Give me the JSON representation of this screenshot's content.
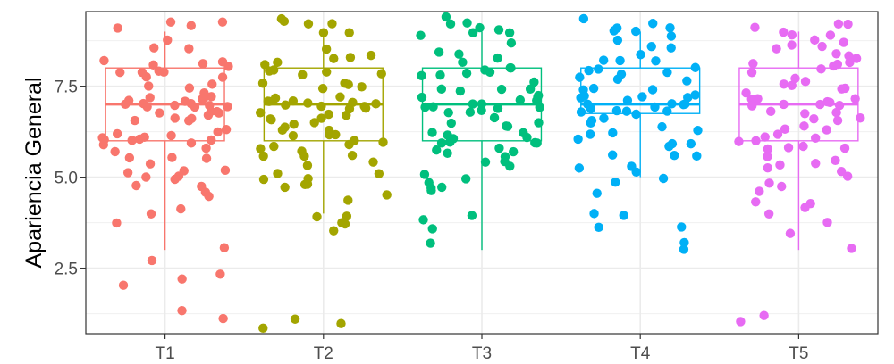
{
  "chart_data": {
    "type": "box+jitter",
    "title": "",
    "xlabel": "",
    "ylabel": "Apariencia General",
    "ylim": [
      0.7,
      9.55
    ],
    "yticks": [
      2.5,
      5.0,
      7.5
    ],
    "ytick_labels": [
      "2.5",
      "5.0",
      "7.5"
    ],
    "grid": true,
    "legend": "none",
    "categories": [
      "T1",
      "T2",
      "T3",
      "T4",
      "T5"
    ],
    "colors": [
      "#F8766D",
      "#A3A500",
      "#00BF7D",
      "#00B0F6",
      "#E76BF3"
    ],
    "boxes": [
      {
        "category": "T1",
        "whisker_low": 3.0,
        "q1": 6.0,
        "median": 7.0,
        "q3": 8.0,
        "whisker_high": 9.0
      },
      {
        "category": "T2",
        "whisker_low": 4.0,
        "q1": 6.0,
        "median": 7.0,
        "q3": 8.0,
        "whisker_high": 9.0
      },
      {
        "category": "T3",
        "whisker_low": 3.0,
        "q1": 6.0,
        "median": 7.0,
        "q3": 8.0,
        "whisker_high": 9.0
      },
      {
        "category": "T4",
        "whisker_low": 5.0,
        "q1": 6.75,
        "median": 7.0,
        "q3": 8.0,
        "whisker_high": 9.0
      },
      {
        "category": "T5",
        "whisker_low": 3.0,
        "q1": 6.0,
        "median": 7.0,
        "q3": 8.0,
        "whisker_high": 9.0
      }
    ],
    "points": [
      {
        "category": "T1",
        "values": [
          9.3,
          9.2,
          9.0,
          9.1,
          8.7,
          8.6,
          8.6,
          8.2,
          8.2,
          8.1,
          8.1,
          8.0,
          8.0,
          7.9,
          7.9,
          7.8,
          7.8,
          7.7,
          7.6,
          7.5,
          7.5,
          7.4,
          7.3,
          7.2,
          7.2,
          7.1,
          7.1,
          7.0,
          7.0,
          7.0,
          7.0,
          7.0,
          7.0,
          6.9,
          6.9,
          6.9,
          6.8,
          6.8,
          6.8,
          6.7,
          6.7,
          6.6,
          6.6,
          6.5,
          6.5,
          6.4,
          6.3,
          6.3,
          6.2,
          6.2,
          6.1,
          6.1,
          6.0,
          6.0,
          6.0,
          5.9,
          5.9,
          5.8,
          5.7,
          5.6,
          5.6,
          5.5,
          5.4,
          5.3,
          5.2,
          5.1,
          5.0,
          4.9,
          4.9,
          4.8,
          4.8,
          4.7,
          4.5,
          4.1,
          4.0,
          3.8,
          3.0,
          2.7,
          2.4,
          2.3,
          2.0,
          1.3,
          1.0
        ]
      },
      {
        "category": "T2",
        "values": [
          9.3,
          9.3,
          9.3,
          9.2,
          9.0,
          8.9,
          8.4,
          8.3,
          8.3,
          8.2,
          8.2,
          8.1,
          8.0,
          8.0,
          7.9,
          7.8,
          7.8,
          7.7,
          7.6,
          7.5,
          7.5,
          7.4,
          7.3,
          7.2,
          7.2,
          7.1,
          7.1,
          7.0,
          7.0,
          7.0,
          7.0,
          7.0,
          7.0,
          6.9,
          6.9,
          6.8,
          6.8,
          6.7,
          6.7,
          6.6,
          6.5,
          6.5,
          6.4,
          6.3,
          6.3,
          6.2,
          6.2,
          6.1,
          6.1,
          6.0,
          6.0,
          5.9,
          5.8,
          5.8,
          5.7,
          5.7,
          5.6,
          5.5,
          5.4,
          5.3,
          5.2,
          5.1,
          5.0,
          4.9,
          4.8,
          4.7,
          4.7,
          4.4,
          4.3,
          4.0,
          4.0,
          3.8,
          3.7,
          3.6,
          1.0,
          1.0,
          0.9
        ]
      },
      {
        "category": "T3",
        "values": [
          9.3,
          9.2,
          9.1,
          9.0,
          9.0,
          9.0,
          9.0,
          8.8,
          8.6,
          8.5,
          8.3,
          8.2,
          8.2,
          8.1,
          8.0,
          8.0,
          8.0,
          7.9,
          7.8,
          7.7,
          7.6,
          7.5,
          7.5,
          7.4,
          7.3,
          7.3,
          7.2,
          7.1,
          7.1,
          7.0,
          7.0,
          7.0,
          7.0,
          7.0,
          6.9,
          6.9,
          6.8,
          6.8,
          6.7,
          6.6,
          6.6,
          6.5,
          6.4,
          6.3,
          6.3,
          6.2,
          6.1,
          6.1,
          6.0,
          6.0,
          6.0,
          5.9,
          5.9,
          5.8,
          5.8,
          5.7,
          5.6,
          5.5,
          5.4,
          5.3,
          5.2,
          5.1,
          5.0,
          4.9,
          4.8,
          4.8,
          4.7,
          4.0,
          3.8,
          3.7,
          3.3
        ]
      },
      {
        "category": "T4",
        "values": [
          9.3,
          9.2,
          9.1,
          9.1,
          9.0,
          9.0,
          8.9,
          8.8,
          8.7,
          8.5,
          8.4,
          8.3,
          8.2,
          8.1,
          8.0,
          8.0,
          8.0,
          7.9,
          7.8,
          7.8,
          7.7,
          7.6,
          7.5,
          7.5,
          7.4,
          7.3,
          7.3,
          7.2,
          7.2,
          7.1,
          7.1,
          7.0,
          7.0,
          7.0,
          7.0,
          7.0,
          6.9,
          6.9,
          6.8,
          6.8,
          6.7,
          6.7,
          6.6,
          6.5,
          6.4,
          6.3,
          6.2,
          6.2,
          6.1,
          6.0,
          6.0,
          5.9,
          5.8,
          5.7,
          5.6,
          5.5,
          5.4,
          5.2,
          5.1,
          5.0,
          4.8,
          4.6,
          4.0,
          3.9,
          3.7,
          3.7,
          3.2,
          3.0
        ]
      },
      {
        "category": "T5",
        "values": [
          9.2,
          9.2,
          9.1,
          9.0,
          9.0,
          8.9,
          8.8,
          8.7,
          8.7,
          8.6,
          8.5,
          8.4,
          8.3,
          8.2,
          8.1,
          8.1,
          8.0,
          8.0,
          7.9,
          7.8,
          7.8,
          7.7,
          7.6,
          7.5,
          7.5,
          7.4,
          7.3,
          7.2,
          7.2,
          7.1,
          7.1,
          7.0,
          7.0,
          7.0,
          7.0,
          6.9,
          6.9,
          6.8,
          6.8,
          6.7,
          6.7,
          6.6,
          6.5,
          6.4,
          6.3,
          6.2,
          6.2,
          6.1,
          6.0,
          6.0,
          5.9,
          5.8,
          5.8,
          5.7,
          5.6,
          5.5,
          5.4,
          5.3,
          5.2,
          5.1,
          5.0,
          4.9,
          4.8,
          4.6,
          4.4,
          4.2,
          4.2,
          3.9,
          3.8,
          3.4,
          3.0,
          1.2,
          1.0
        ]
      }
    ]
  }
}
